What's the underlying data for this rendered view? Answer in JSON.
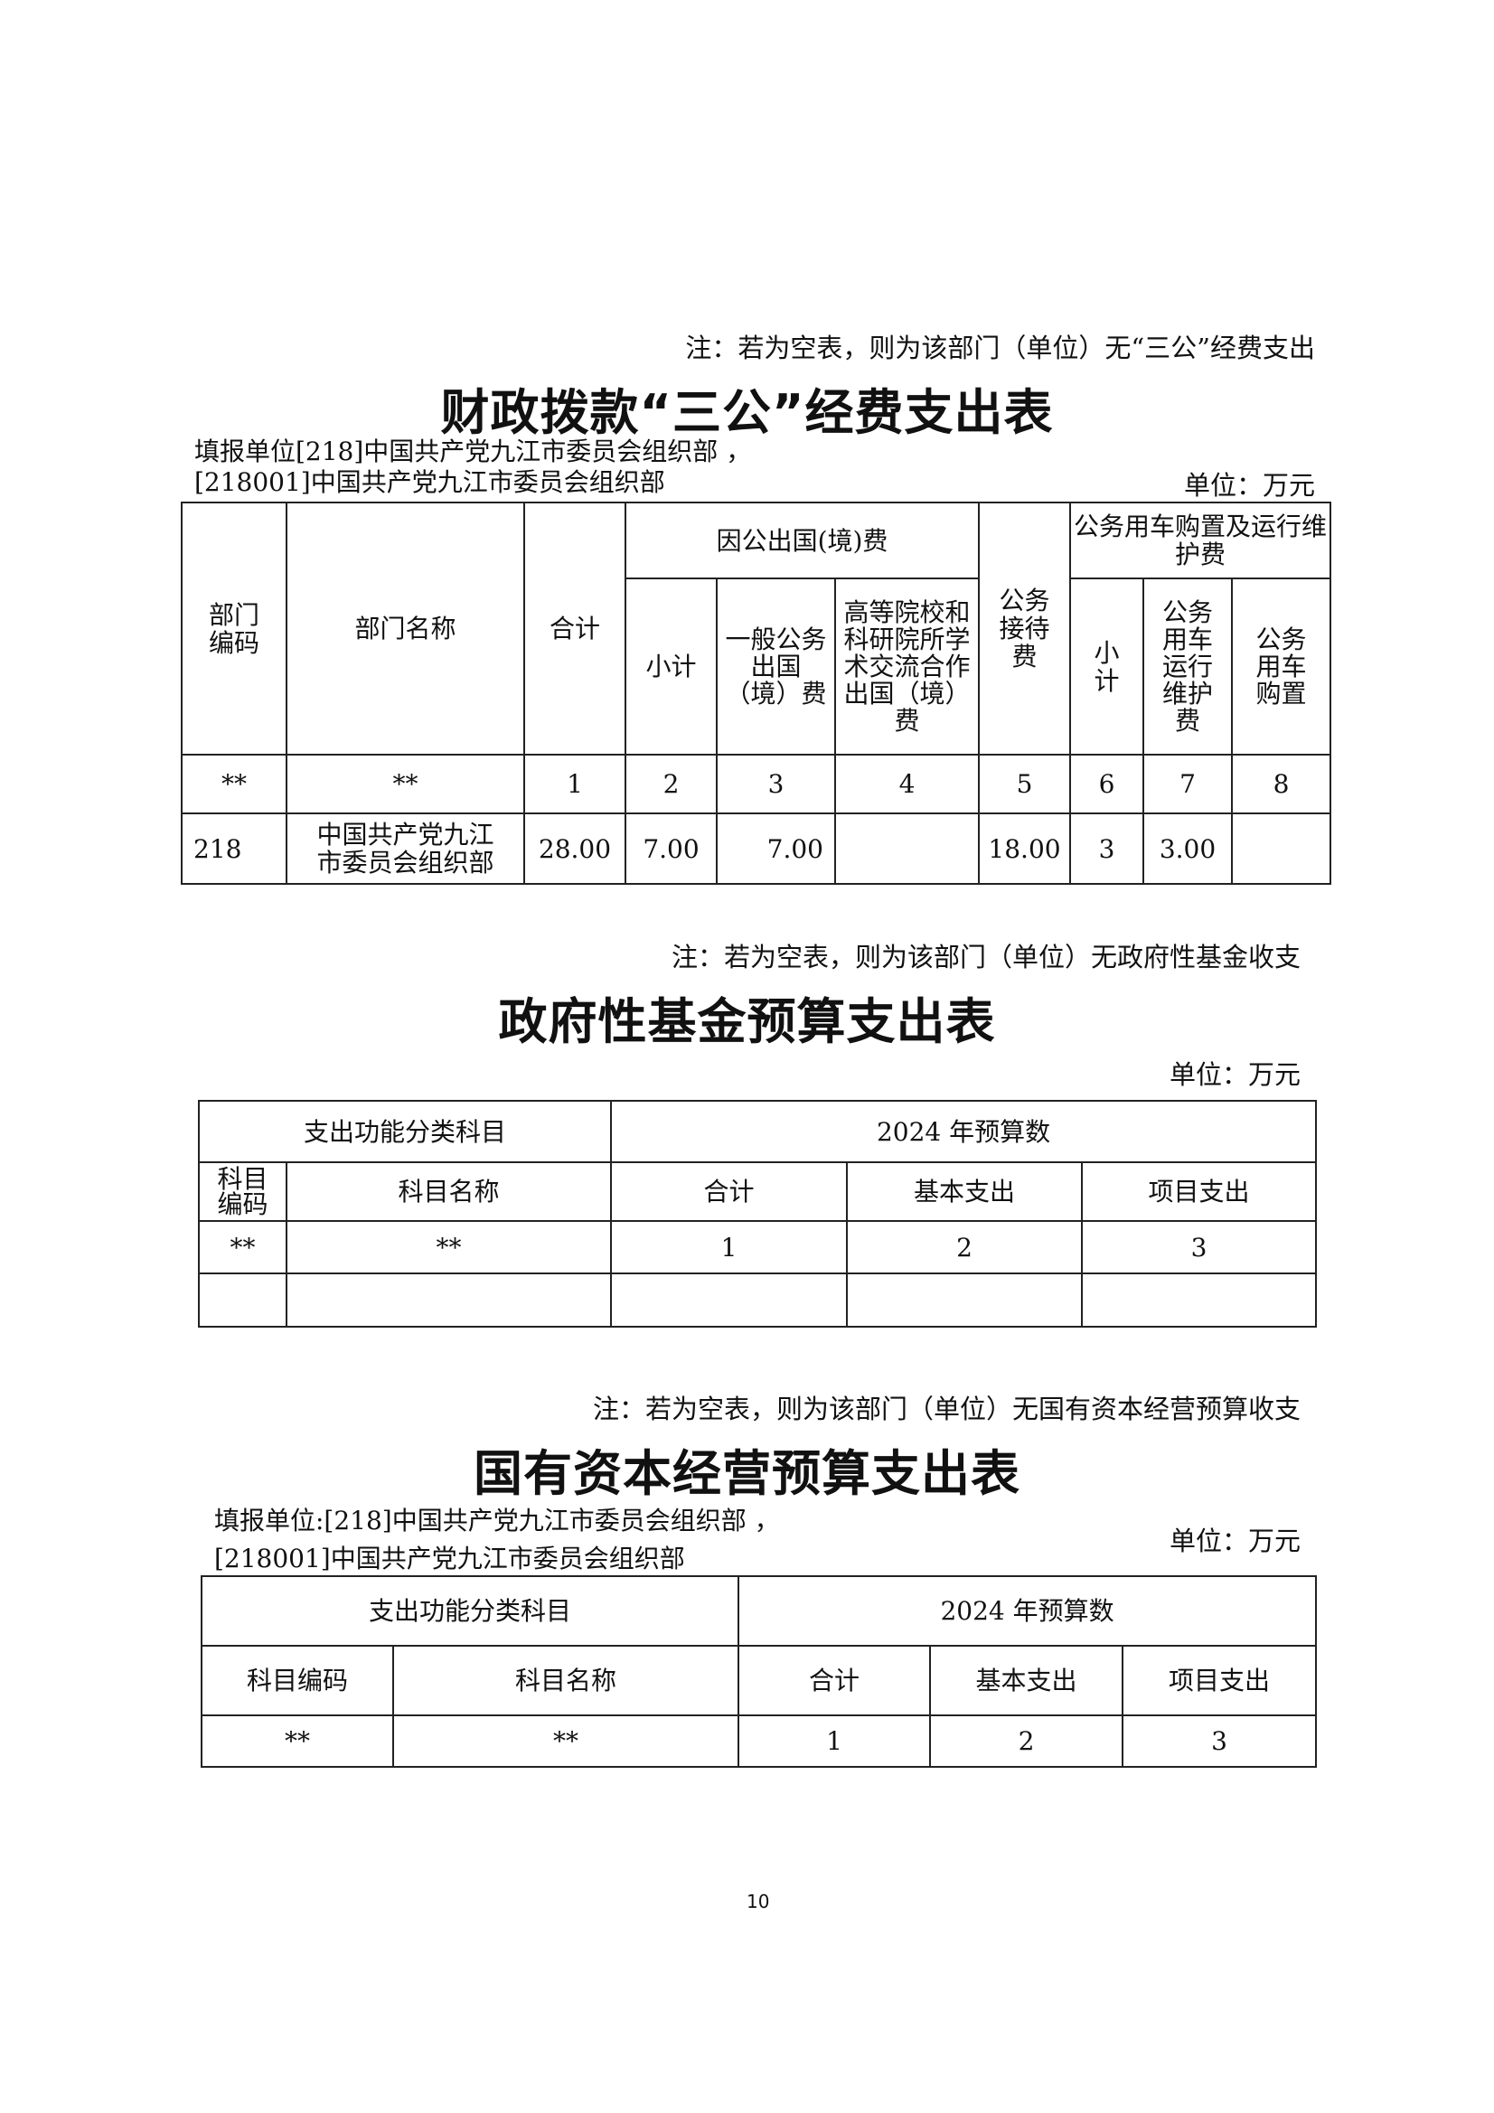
{
  "section1": {
    "note": "注：若为空表，则为该部门（单位）无“三公”经费支出",
    "title": "财政拨款“三公”经费支出表",
    "fill_unit_line1": "填报单位[218]中国共产党九江市委员会组织部 ，",
    "fill_unit_line2": "[218001]中国共产党九江市委员会组织部",
    "unit": "单位：万元",
    "headers": {
      "dept_code": "部门编码",
      "dept_name": "部门名称",
      "total": "合计",
      "abroad_group": "因公出国(境)费",
      "abroad_subtotal": "小计",
      "abroad_general": "一般公务出国（境）费",
      "abroad_academic": "高等院校和科研院所学术交流合作出国（境）费",
      "reception": "公务接待费",
      "vehicle_group": "公务用车购置及运行维护费",
      "vehicle_subtotal": "小计",
      "vehicle_operation": "公务用车运行维护费",
      "vehicle_purchase": "公务用车购置"
    },
    "index_row": [
      "**",
      "**",
      "1",
      "2",
      "3",
      "4",
      "5",
      "6",
      "7",
      "8"
    ],
    "data_row": [
      "218",
      "中国共产党九江市委员会组织部",
      "28.00",
      "7.00",
      "7.00",
      "",
      "18.00",
      "3",
      "3.00",
      ""
    ]
  },
  "section2": {
    "note": "注：若为空表，则为该部门（单位）无政府性基金收支",
    "title": "政府性基金预算支出表",
    "unit": "单位：万元",
    "headers": {
      "category_group": "支出功能分类科目",
      "budget_group": "2024 年预算数",
      "subject_code": "科目编码",
      "subject_name": "科目名称",
      "total": "合计",
      "basic": "基本支出",
      "project": "项目支出"
    },
    "index_row": [
      "**",
      "**",
      "1",
      "2",
      "3"
    ],
    "data_row": [
      "",
      "",
      "",
      "",
      ""
    ]
  },
  "section3": {
    "note": "注：若为空表，则为该部门（单位）无国有资本经营预算收支",
    "title": "国有资本经营预算支出表",
    "fill_unit_line1": "填报单位:[218]中国共产党九江市委员会组织部 ，",
    "fill_unit_line2": "[218001]中国共产党九江市委员会组织部",
    "unit": "单位：万元",
    "headers": {
      "category_group": "支出功能分类科目",
      "budget_group": "2024 年预算数",
      "subject_code": "科目编码",
      "subject_name": "科目名称",
      "total": "合计",
      "basic": "基本支出",
      "project": "项目支出"
    },
    "index_row": [
      "**",
      "**",
      "1",
      "2",
      "3"
    ]
  },
  "page_number": "10"
}
